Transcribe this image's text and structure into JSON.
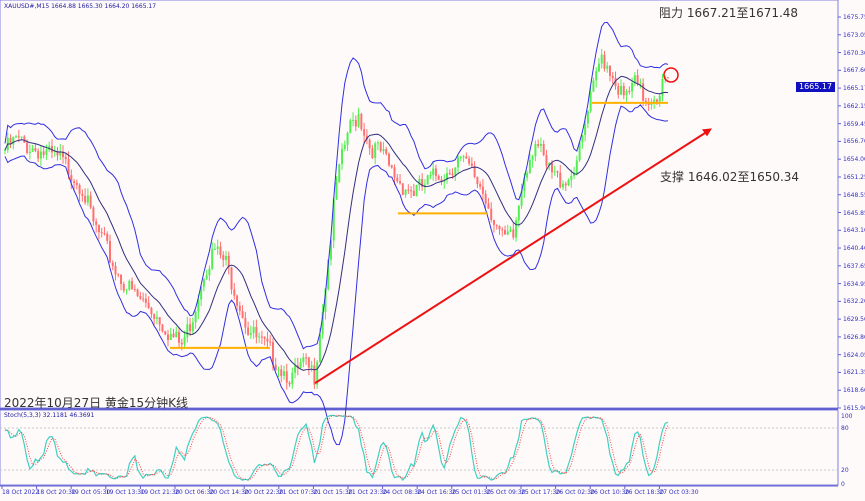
{
  "header": {
    "symbol_line": "XAUUSD#,M15  1664.88 1665.30 1664.20 1665.17"
  },
  "annotations": {
    "resistance": "阻力 1667.21至1671.48",
    "support": "支撑 1646.02至1650.34",
    "caption": "2022年10月27日 黄金15分钟K线"
  },
  "colors": {
    "background": "#fffafa",
    "bull": "#50f050",
    "bear": "#ff7070",
    "bands": "#3030e0",
    "level_lines": "#ffb000",
    "trend_arrow": "#ee1111",
    "stoch_main": "#40d0c0",
    "stoch_signal": "#ff4040"
  },
  "chart_data": [
    {
      "type": "candlestick",
      "symbol": "XAUUSD#",
      "timeframe": "M15",
      "current_price": "1665.17",
      "ylim": [
        1615.9,
        1675.75
      ],
      "y_tick_labels": [
        "1675.75",
        "1673.05",
        "1670.30",
        "1667.60",
        "1665.17",
        "1662.15",
        "1659.45",
        "1656.70",
        "1654.00",
        "1651.25",
        "1648.55",
        "1645.85",
        "1643.10",
        "1640.40",
        "1637.65",
        "1634.95",
        "1632.20",
        "1629.50",
        "1626.80",
        "1624.05",
        "1621.35",
        "1618.60",
        "1615.90"
      ],
      "x_tick_labels": [
        "18 Oct 2022",
        "18 Oct 20:30",
        "19 Oct 05:30",
        "19 Oct 13:30",
        "19 Oct 21:30",
        "20 Oct 06:30",
        "20 Oct 14:30",
        "20 Oct 22:30",
        "21 Oct 07:30",
        "21 Oct 15:30",
        "21 Oct 23:30",
        "24 Oct 08:30",
        "24 Oct 16:30",
        "25 Oct 01:30",
        "25 Oct 09:30",
        "25 Oct 17:30",
        "26 Oct 02:30",
        "26 Oct 10:30",
        "26 Oct 18:30",
        "27 Oct 03:30"
      ],
      "close_series": [
        1655.4,
        1656.9,
        1656,
        1655.4,
        1654.5,
        1653.9,
        1652,
        1649.7,
        1644,
        1641,
        1637,
        1634.5,
        1632.8,
        1631.5,
        1629.5,
        1627,
        1625.5,
        1630,
        1637,
        1640,
        1638,
        1633,
        1628,
        1626,
        1624.5,
        1622,
        1620.5,
        1622.5,
        1621,
        1635,
        1650,
        1658,
        1661,
        1656,
        1655,
        1652,
        1650,
        1649,
        1650,
        1651.5,
        1652,
        1654,
        1652.5,
        1650,
        1646,
        1641.6,
        1642,
        1652,
        1657,
        1652.5,
        1651,
        1651,
        1655,
        1663,
        1670,
        1667,
        1663,
        1665.5,
        1663,
        1664,
        1666.5
      ],
      "indicators": [
        "Bollinger Bands",
        "Moving Average"
      ],
      "horizontal_levels": [
        1625.1,
        1645.7,
        1662.6
      ],
      "trend_arrow": {
        "from": 1619.7,
        "to": 1658.7
      }
    },
    {
      "type": "line",
      "name": "Stoch(5,3,3) 32.1181 46.3691",
      "ylim": [
        0,
        100
      ],
      "y_tick_labels": [
        "100",
        "80",
        "20",
        "0"
      ],
      "levels": [
        20,
        80
      ]
    }
  ]
}
